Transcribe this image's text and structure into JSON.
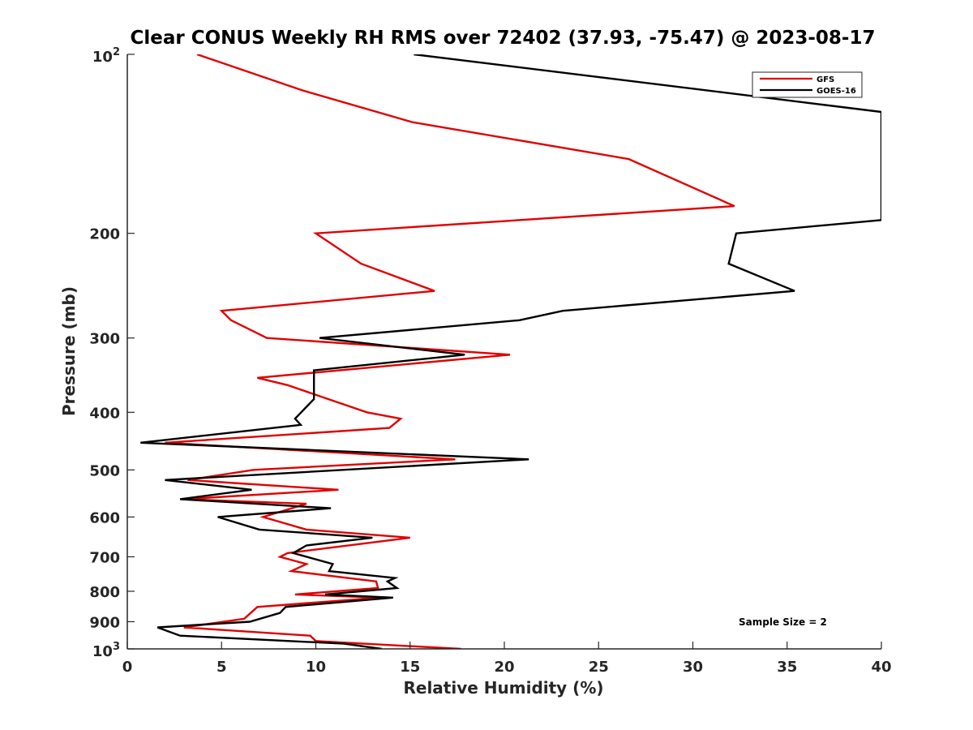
{
  "chart_data": {
    "type": "line",
    "title": "Clear CONUS Weekly RH RMS over 72402 (37.93, -75.47) @ 2023-08-17",
    "xlabel": "Relative Humidity (%)",
    "ylabel": "Pressure (mb)",
    "xlim": [
      0,
      40
    ],
    "ylim": [
      100,
      1000
    ],
    "yscale": "log",
    "y_reversed": true,
    "x_ticks": [
      0,
      5,
      10,
      15,
      20,
      25,
      30,
      35,
      40
    ],
    "x_tick_labels": [
      "0",
      "5",
      "10",
      "15",
      "20",
      "25",
      "30",
      "35",
      "40"
    ],
    "y_ticks": [
      200,
      300,
      400,
      500,
      600,
      700,
      800,
      900
    ],
    "y_tick_labels": [
      "200",
      "300",
      "400",
      "500",
      "600",
      "700",
      "800",
      "900"
    ],
    "y_top_label": {
      "base": "10",
      "exp": "2"
    },
    "y_bottom_label": {
      "base": "10",
      "exp": "3"
    },
    "legend_position": "top-right",
    "annotation": "Sample Size = 2",
    "series": [
      {
        "name": "GFS",
        "color": "#e00000",
        "points": [
          [
            3.7,
            100
          ],
          [
            9.3,
            115
          ],
          [
            15.1,
            130
          ],
          [
            26.6,
            150
          ],
          [
            32.2,
            180
          ],
          [
            10.0,
            200
          ],
          [
            12.4,
            225
          ],
          [
            16.3,
            250
          ],
          [
            5.0,
            270
          ],
          [
            5.5,
            280
          ],
          [
            7.4,
            300
          ],
          [
            20.3,
            320
          ],
          [
            6.9,
            350
          ],
          [
            8.5,
            360
          ],
          [
            12.7,
            400
          ],
          [
            14.5,
            410
          ],
          [
            13.9,
            425
          ],
          [
            2.0,
            450
          ],
          [
            17.4,
            480
          ],
          [
            6.7,
            500
          ],
          [
            3.2,
            520
          ],
          [
            11.2,
            540
          ],
          [
            3.0,
            560
          ],
          [
            9.5,
            570
          ],
          [
            7.2,
            600
          ],
          [
            9.5,
            630
          ],
          [
            15.0,
            650
          ],
          [
            8.5,
            690
          ],
          [
            8.1,
            700
          ],
          [
            9.5,
            720
          ],
          [
            8.7,
            740
          ],
          [
            13.2,
            770
          ],
          [
            13.3,
            790
          ],
          [
            8.9,
            810
          ],
          [
            13.4,
            820
          ],
          [
            6.9,
            850
          ],
          [
            6.2,
            890
          ],
          [
            3.0,
            920
          ],
          [
            9.7,
            950
          ],
          [
            10.0,
            970
          ],
          [
            17.7,
            1000
          ]
        ]
      },
      {
        "name": "GOES-16",
        "color": "#000000",
        "points": [
          [
            15.2,
            100
          ],
          [
            25.8,
            110
          ],
          [
            40.0,
            125
          ],
          [
            40.0,
            190
          ],
          [
            32.3,
            200
          ],
          [
            31.9,
            225
          ],
          [
            35.4,
            250
          ],
          [
            23.1,
            270
          ],
          [
            20.8,
            280
          ],
          [
            10.2,
            300
          ],
          [
            17.9,
            320
          ],
          [
            9.9,
            340
          ],
          [
            9.9,
            380
          ],
          [
            8.9,
            410
          ],
          [
            9.2,
            420
          ],
          [
            0.7,
            450
          ],
          [
            21.3,
            480
          ],
          [
            2.0,
            520
          ],
          [
            6.6,
            540
          ],
          [
            2.8,
            560
          ],
          [
            10.8,
            580
          ],
          [
            4.8,
            600
          ],
          [
            7.0,
            630
          ],
          [
            13.0,
            650
          ],
          [
            9.5,
            670
          ],
          [
            8.8,
            690
          ],
          [
            10.9,
            720
          ],
          [
            10.7,
            740
          ],
          [
            14.2,
            760
          ],
          [
            13.8,
            770
          ],
          [
            14.3,
            790
          ],
          [
            10.5,
            810
          ],
          [
            14.1,
            820
          ],
          [
            8.4,
            850
          ],
          [
            8.1,
            870
          ],
          [
            6.5,
            900
          ],
          [
            1.6,
            920
          ],
          [
            2.8,
            950
          ],
          [
            11.5,
            980
          ],
          [
            13.5,
            1000
          ]
        ]
      }
    ]
  }
}
